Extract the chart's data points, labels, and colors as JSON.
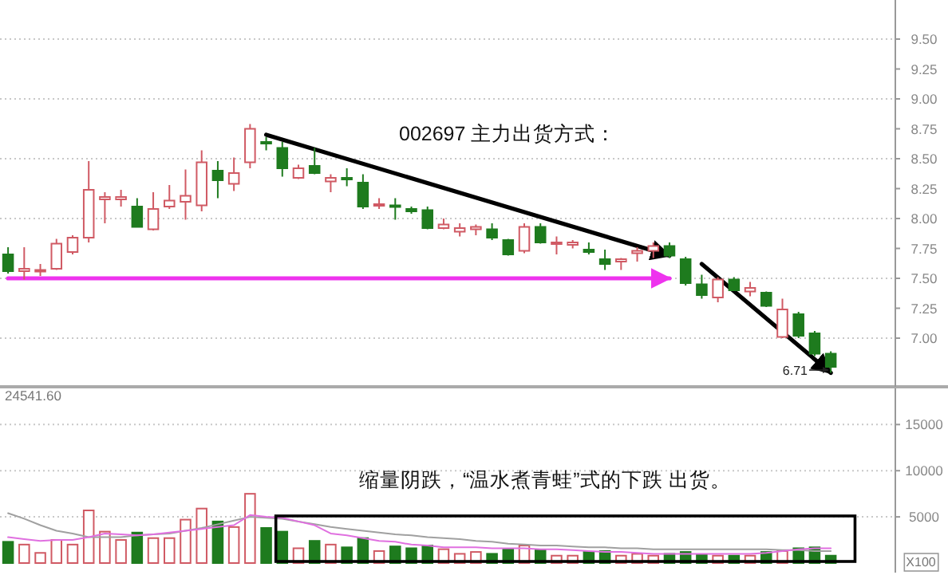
{
  "chart_data": [
    {
      "type": "candlestick",
      "categories": [
        null,
        null,
        null,
        null,
        null,
        null,
        null,
        null,
        null,
        null,
        null,
        null,
        null,
        null,
        null,
        null,
        null,
        null,
        null,
        null,
        null,
        null,
        null,
        null,
        null,
        null,
        null,
        null,
        null,
        null,
        null,
        null,
        null,
        null,
        null,
        null,
        null,
        null,
        null,
        null,
        null,
        null,
        null,
        null,
        null,
        null,
        null,
        null,
        null,
        null,
        null,
        null
      ],
      "ohlc": [
        [
          7.7,
          7.76,
          7.54,
          7.56
        ],
        [
          7.56,
          7.76,
          7.49,
          7.58
        ],
        [
          7.56,
          7.62,
          7.52,
          7.57
        ],
        [
          7.58,
          7.83,
          7.57,
          7.79
        ],
        [
          7.72,
          7.86,
          7.7,
          7.84
        ],
        [
          7.84,
          8.48,
          7.8,
          8.24
        ],
        [
          8.16,
          8.22,
          7.96,
          8.18
        ],
        [
          8.16,
          8.24,
          8.1,
          8.18
        ],
        [
          8.1,
          8.17,
          7.93,
          7.93
        ],
        [
          7.91,
          8.22,
          7.9,
          8.08
        ],
        [
          8.1,
          8.28,
          8.08,
          8.15
        ],
        [
          8.14,
          8.41,
          7.99,
          8.19
        ],
        [
          8.11,
          8.57,
          8.06,
          8.47
        ],
        [
          8.4,
          8.48,
          8.17,
          8.32
        ],
        [
          8.29,
          8.51,
          8.23,
          8.38
        ],
        [
          8.47,
          8.79,
          8.42,
          8.75
        ],
        [
          8.64,
          8.68,
          8.57,
          8.63
        ],
        [
          8.59,
          8.64,
          8.35,
          8.42
        ],
        [
          8.34,
          8.45,
          8.33,
          8.42
        ],
        [
          8.44,
          8.59,
          8.37,
          8.38
        ],
        [
          8.31,
          8.37,
          8.22,
          8.34
        ],
        [
          8.34,
          8.42,
          8.27,
          8.33
        ],
        [
          8.3,
          8.37,
          8.08,
          8.1
        ],
        [
          8.11,
          8.17,
          8.08,
          8.12
        ],
        [
          8.11,
          8.17,
          7.99,
          8.1
        ],
        [
          8.08,
          8.1,
          8.04,
          8.06
        ],
        [
          8.07,
          8.1,
          7.91,
          7.92
        ],
        [
          7.92,
          8.0,
          7.91,
          7.95
        ],
        [
          7.89,
          7.96,
          7.85,
          7.92
        ],
        [
          7.91,
          7.95,
          7.86,
          7.93
        ],
        [
          7.91,
          7.96,
          7.82,
          7.84
        ],
        [
          7.82,
          7.83,
          7.69,
          7.7
        ],
        [
          7.73,
          7.96,
          7.71,
          7.93
        ],
        [
          7.93,
          7.96,
          7.79,
          7.8
        ],
        [
          7.79,
          7.85,
          7.7,
          7.8
        ],
        [
          7.78,
          7.82,
          7.75,
          7.8
        ],
        [
          7.74,
          7.8,
          7.7,
          7.72
        ],
        [
          7.66,
          7.74,
          7.57,
          7.62
        ],
        [
          7.64,
          7.67,
          7.57,
          7.66
        ],
        [
          7.71,
          7.76,
          7.64,
          7.73
        ],
        [
          7.73,
          7.8,
          7.67,
          7.77
        ],
        [
          7.77,
          7.8,
          7.67,
          7.69
        ],
        [
          7.66,
          7.68,
          7.44,
          7.46
        ],
        [
          7.45,
          7.53,
          7.33,
          7.36
        ],
        [
          7.34,
          7.51,
          7.3,
          7.49
        ],
        [
          7.49,
          7.51,
          7.4,
          7.4
        ],
        [
          7.39,
          7.47,
          7.35,
          7.42
        ],
        [
          7.38,
          7.39,
          7.26,
          7.27
        ],
        [
          7.01,
          7.33,
          7.0,
          7.24
        ],
        [
          7.2,
          7.22,
          7.0,
          7.02
        ],
        [
          7.04,
          7.06,
          6.85,
          6.87
        ],
        [
          6.87,
          6.89,
          6.71,
          6.76
        ]
      ],
      "colors": [
        "#1e7b1e",
        "#d05a64",
        "#d05a64",
        "#d05a64",
        "#d05a64",
        "#d05a64",
        "#d05a64",
        "#d05a64",
        "#1e7b1e",
        "#d05a64",
        "#d05a64",
        "#d05a64",
        "#d05a64",
        "#1e7b1e",
        "#d05a64",
        "#d05a64",
        "#1e7b1e",
        "#1e7b1e",
        "#d05a64",
        "#1e7b1e",
        "#d05a64",
        "#1e7b1e",
        "#1e7b1e",
        "#d05a64",
        "#1e7b1e",
        "#1e7b1e",
        "#1e7b1e",
        "#d05a64",
        "#d05a64",
        "#d05a64",
        "#1e7b1e",
        "#1e7b1e",
        "#d05a64",
        "#1e7b1e",
        "#d05a64",
        "#d05a64",
        "#1e7b1e",
        "#1e7b1e",
        "#d05a64",
        "#d05a64",
        "#d05a64",
        "#1e7b1e",
        "#1e7b1e",
        "#1e7b1e",
        "#d05a64",
        "#1e7b1e",
        "#d05a64",
        "#1e7b1e",
        "#d05a64",
        "#1e7b1e",
        "#1e7b1e",
        "#1e7b1e"
      ],
      "series": [
        {
          "type": "line",
          "color": "#000000",
          "values": [
            null,
            null,
            null,
            null,
            null,
            null,
            null,
            null,
            null,
            null,
            null,
            null,
            null,
            null,
            null,
            null,
            8.7,
            null,
            null,
            null,
            null,
            null,
            null,
            null,
            null,
            null,
            null,
            null,
            null,
            null,
            null,
            null,
            null,
            null,
            null,
            null,
            null,
            null,
            null,
            null,
            null,
            7.69,
            null,
            null,
            null,
            null,
            null,
            null,
            null,
            null,
            null,
            null
          ]
        },
        {
          "type": "line",
          "color": "#000000",
          "values": [
            null,
            null,
            null,
            null,
            null,
            null,
            null,
            null,
            null,
            null,
            null,
            null,
            null,
            null,
            null,
            null,
            null,
            null,
            null,
            null,
            null,
            null,
            null,
            null,
            null,
            null,
            null,
            null,
            null,
            null,
            null,
            null,
            null,
            null,
            null,
            null,
            null,
            null,
            null,
            null,
            null,
            null,
            null,
            7.62,
            null,
            null,
            null,
            null,
            null,
            null,
            null,
            6.71
          ]
        },
        {
          "type": "line",
          "color": "#ee33ee",
          "values": [
            7.5,
            null,
            null,
            null,
            null,
            null,
            null,
            null,
            null,
            null,
            null,
            null,
            null,
            null,
            null,
            null,
            null,
            null,
            null,
            null,
            null,
            null,
            null,
            null,
            null,
            null,
            null,
            null,
            null,
            null,
            null,
            null,
            null,
            null,
            null,
            null,
            null,
            null,
            null,
            null,
            null,
            7.5,
            null,
            null,
            null,
            null,
            null,
            null,
            null,
            null,
            null,
            null
          ]
        }
      ],
      "ylim": [
        6.6,
        9.8
      ],
      "yticks": [
        {
          "value": 7,
          "label": "7.00"
        },
        {
          "value": 7.25,
          "label": "7.25"
        },
        {
          "value": 7.5,
          "label": "7.50"
        },
        {
          "value": 7.75,
          "label": "7.75"
        },
        {
          "value": 8,
          "label": "8.00"
        },
        {
          "value": 8.25,
          "label": "8.25"
        },
        {
          "value": 8.5,
          "label": "8.50"
        },
        {
          "value": 8.75,
          "label": "8.75"
        },
        {
          "value": 9,
          "label": "9.00"
        },
        {
          "value": 9.25,
          "label": "9.25"
        },
        {
          "value": 9.5,
          "label": "9.50"
        }
      ],
      "grid": "y",
      "annotations": [
        "002697  主力出货方式：",
        "6.71"
      ]
    },
    {
      "type": "bar",
      "categories": [
        null,
        null,
        null,
        null,
        null,
        null,
        null,
        null,
        null,
        null,
        null,
        null,
        null,
        null,
        null,
        null,
        null,
        null,
        null,
        null,
        null,
        null,
        null,
        null,
        null,
        null,
        null,
        null,
        null,
        null,
        null,
        null,
        null,
        null,
        null,
        null,
        null,
        null,
        null,
        null,
        null,
        null,
        null,
        null,
        null,
        null,
        null,
        null,
        null,
        null,
        null,
        null
      ],
      "series": [
        {
          "type": "bar",
          "values": [
            2300,
            2000,
            1100,
            2500,
            2000,
            5700,
            3400,
            2500,
            3300,
            2700,
            2700,
            4700,
            5900,
            4500,
            3900,
            7500,
            3800,
            3400,
            1600,
            2400,
            2000,
            1700,
            2700,
            1300,
            1800,
            1600,
            1900,
            1500,
            1000,
            1200,
            1000,
            1500,
            1900,
            1400,
            800,
            800,
            1200,
            1300,
            800,
            1000,
            800,
            1000,
            1200,
            900,
            800,
            800,
            800,
            1200,
            1300,
            1600,
            1700,
            800
          ],
          "colors": [
            "#1e7b1e",
            "#d05a64",
            "#d05a64",
            "#d05a64",
            "#d05a64",
            "#d05a64",
            "#d05a64",
            "#d05a64",
            "#1e7b1e",
            "#d05a64",
            "#d05a64",
            "#d05a64",
            "#d05a64",
            "#1e7b1e",
            "#d05a64",
            "#d05a64",
            "#1e7b1e",
            "#1e7b1e",
            "#d05a64",
            "#1e7b1e",
            "#d05a64",
            "#1e7b1e",
            "#1e7b1e",
            "#d05a64",
            "#1e7b1e",
            "#1e7b1e",
            "#1e7b1e",
            "#d05a64",
            "#d05a64",
            "#d05a64",
            "#1e7b1e",
            "#1e7b1e",
            "#d05a64",
            "#1e7b1e",
            "#d05a64",
            "#d05a64",
            "#1e7b1e",
            "#1e7b1e",
            "#d05a64",
            "#d05a64",
            "#d05a64",
            "#1e7b1e",
            "#1e7b1e",
            "#1e7b1e",
            "#d05a64",
            "#1e7b1e",
            "#d05a64",
            "#1e7b1e",
            "#d05a64",
            "#1e7b1e",
            "#1e7b1e",
            "#1e7b1e"
          ]
        },
        {
          "type": "line",
          "color": "#a0a0a0",
          "values": [
            5400,
            4800,
            4100,
            3500,
            3200,
            2800,
            2800,
            2800,
            3000,
            3100,
            3200,
            3500,
            3800,
            4200,
            4600,
            5000,
            4900,
            4800,
            4500,
            4200,
            3900,
            3700,
            3500,
            3300,
            3100,
            3000,
            2800,
            2700,
            2600,
            2400,
            2300,
            2100,
            2000,
            1900,
            1900,
            1800,
            1700,
            1700,
            1600,
            1600,
            1500,
            1500,
            1500,
            1500,
            1500,
            1500,
            1500,
            1500,
            1400,
            1400,
            1300,
            1300
          ]
        },
        {
          "type": "line",
          "color": "#e070e0",
          "values": [
            2800,
            2600,
            2400,
            2500,
            2500,
            2800,
            3200,
            3100,
            3000,
            3100,
            3300,
            3500,
            3700,
            3900,
            4100,
            5200,
            5000,
            4900,
            4500,
            4100,
            3200,
            3000,
            2700,
            2400,
            2300,
            2000,
            1900,
            1700,
            1700,
            1700,
            1600,
            1600,
            1600,
            1500,
            1500,
            1400,
            1300,
            1200,
            1200,
            1100,
            1000,
            1000,
            1000,
            1000,
            1000,
            1000,
            1000,
            1100,
            1300,
            1500,
            1600,
            1600
          ]
        }
      ],
      "ylim": [
        0,
        19000
      ],
      "yticks": [
        5000,
        10000,
        15000
      ],
      "grid": "y",
      "annotations": [
        "24541.60",
        "X100",
        "缩量阴跌，“温水煮青蛙”式的下跌 出货。"
      ]
    }
  ]
}
